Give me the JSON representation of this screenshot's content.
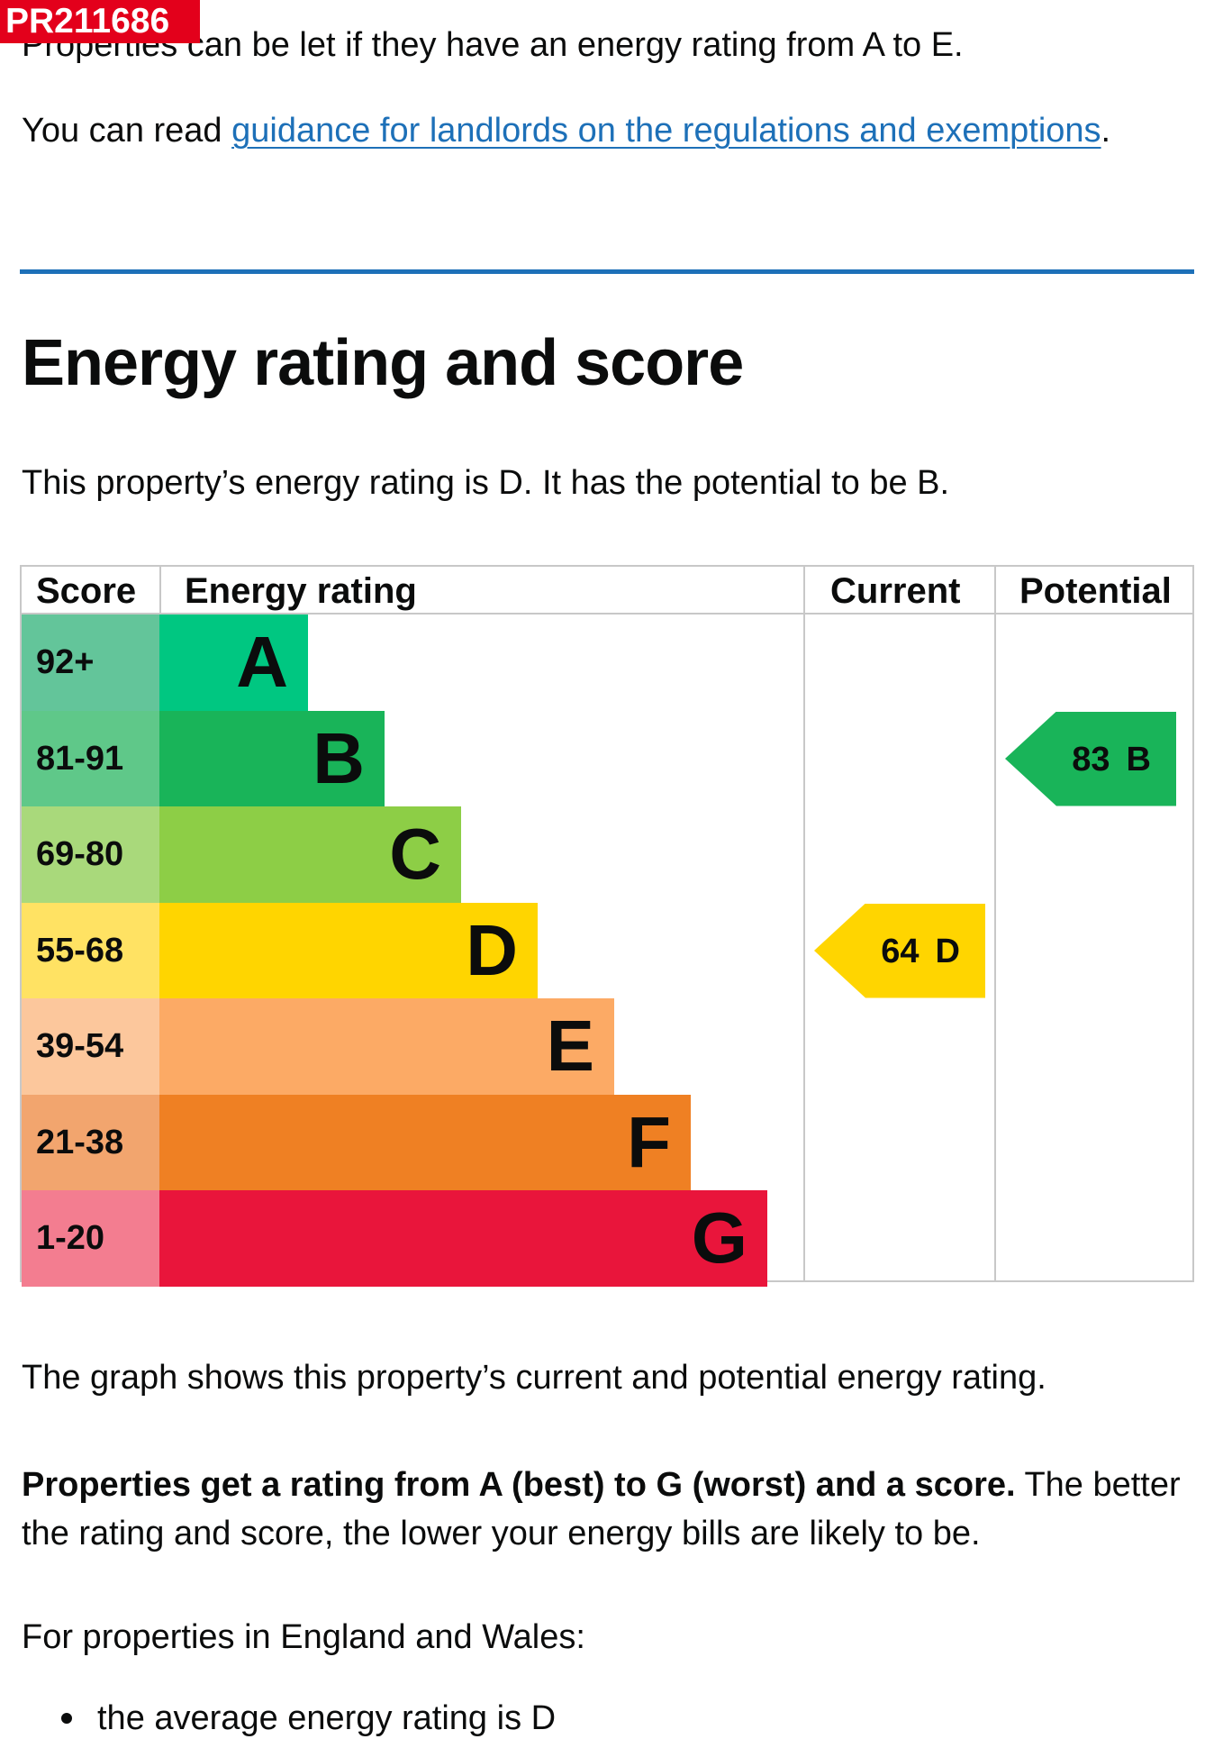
{
  "reference_badge": "PR211686",
  "intro": {
    "line1": "Properties can be let if they have an energy rating from A to E.",
    "line2_prefix": "You can read ",
    "line2_link": "guidance for landlords on the regulations and exemptions",
    "line2_suffix": "."
  },
  "section": {
    "heading": "Energy rating and score",
    "summary": "This property’s energy rating is D. It has the potential to be B."
  },
  "chart_data": {
    "type": "bar",
    "title": "",
    "columns": [
      "Score",
      "Energy rating",
      "Current",
      "Potential"
    ],
    "bands": [
      {
        "score": "92+",
        "letter": "A",
        "score_color": "#63c59a",
        "bar_color": "#00c781",
        "length_rank": 1
      },
      {
        "score": "81-91",
        "letter": "B",
        "score_color": "#5fc889",
        "bar_color": "#19b459",
        "length_rank": 2
      },
      {
        "score": "69-80",
        "letter": "C",
        "score_color": "#a9d97b",
        "bar_color": "#8dce46",
        "length_rank": 3
      },
      {
        "score": "55-68",
        "letter": "D",
        "score_color": "#ffe263",
        "bar_color": "#ffd500",
        "length_rank": 4
      },
      {
        "score": "39-54",
        "letter": "E",
        "score_color": "#fcc79c",
        "bar_color": "#fcaa65",
        "length_rank": 5
      },
      {
        "score": "21-38",
        "letter": "F",
        "score_color": "#f2a56e",
        "bar_color": "#ef8023",
        "length_rank": 6
      },
      {
        "score": "1-20",
        "letter": "G",
        "score_color": "#f37d90",
        "bar_color": "#e9153b",
        "length_rank": 7
      }
    ],
    "current": {
      "value": "64",
      "letter": "D",
      "band_index": 3,
      "color": "#ffd500"
    },
    "potential": {
      "value": "83",
      "letter": "B",
      "band_index": 1,
      "color": "#19b459"
    }
  },
  "after_chart": {
    "graph_note": "The graph shows this property’s current and potential energy rating.",
    "bands_bold": "Properties get a rating from A (best) to G (worst) and a score.",
    "bands_rest": " The better the rating and score, the lower your energy bills are likely to be.",
    "region_intro": "For properties in England and Wales:",
    "bullet_1": "the average energy rating is D"
  }
}
